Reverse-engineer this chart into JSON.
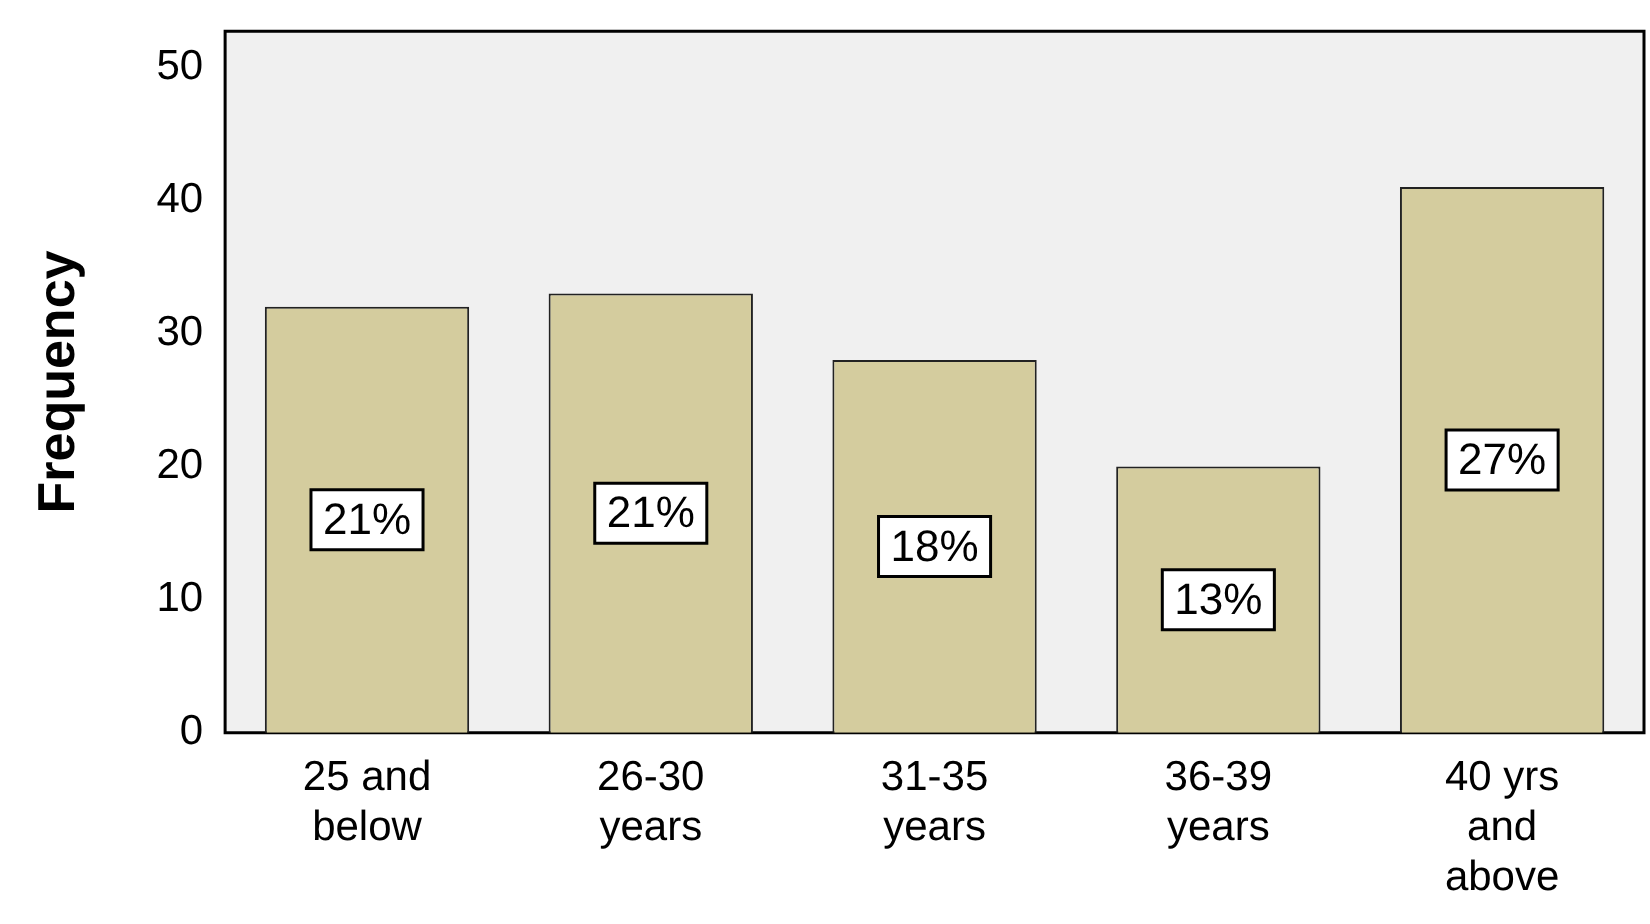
{
  "chart_data": {
    "type": "bar",
    "ylabel": "Frequency",
    "categories": [
      "25 and below",
      "26-30 years",
      "31-35 years",
      "36-39 years",
      "40 yrs and above"
    ],
    "values": [
      32,
      33,
      28,
      20,
      41
    ],
    "annotations": [
      "21%",
      "21%",
      "18%",
      "13%",
      "27%"
    ],
    "color": "#d4cc9e",
    "ylim": [
      0,
      52.7
    ],
    "yticks": [
      0,
      10,
      20,
      30,
      40,
      50
    ],
    "grid": false,
    "legend": false
  }
}
